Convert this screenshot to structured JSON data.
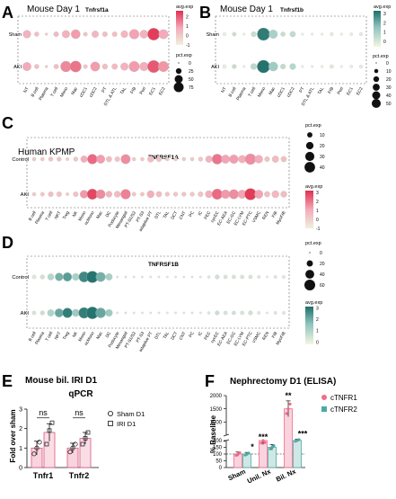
{
  "figure": {
    "panels": [
      {
        "letter": "A",
        "label": "Mouse Day 1",
        "gene": "Tnfrsf1a"
      },
      {
        "letter": "B",
        "label": "Mouse Day 1",
        "gene": "Tnfrsf1b"
      },
      {
        "letter": "C",
        "label": "Human KPMP",
        "gene": "TNFRSF1A"
      },
      {
        "letter": "D",
        "label": "",
        "gene": "TNFRSF1B"
      },
      {
        "letter": "E",
        "label": "Mouse bil. IRI D1",
        "subtitle": "qPCR"
      },
      {
        "letter": "F",
        "label": "Nephrectomy D1 (ELISA)"
      }
    ],
    "legend_labels": {
      "avg_exp": "avg.exp",
      "pct_exp": "pct.exp"
    },
    "colors": {
      "tnfrsf1a_high": "#e0304f",
      "tnfrsf1a_low": "#f6f4e6",
      "tnfrsf1b_high": "#2a7b76",
      "tnfrsf1b_low": "#f4f6e2",
      "tnfr1_bar": "#ef6c8e",
      "tnfr2_bar": "#4eaaa4"
    }
  },
  "chart_data": [
    {
      "type": "scatter",
      "title": "Tnfrsf1a",
      "rows": [
        "Sham",
        "AKI"
      ],
      "cols": [
        "NT",
        "B cell",
        "Plasma",
        "T cell",
        "Mono",
        "Mac",
        "cDC1",
        "cDC2",
        "PT",
        "DTL & ATL",
        "TAL",
        "FIB",
        "Peri",
        "EC1",
        "EC2"
      ],
      "avg_exp": [
        [
          0.6,
          0.3,
          0.1,
          0.4,
          0.6,
          1.0,
          0.2,
          0.5,
          0.3,
          0.3,
          0.5,
          0.9,
          0.6,
          2.4,
          0.8
        ],
        [
          0.8,
          0.3,
          0.1,
          0.3,
          1.3,
          1.6,
          0.2,
          1.0,
          0.3,
          0.4,
          0.6,
          1.0,
          0.7,
          2.0,
          1.1
        ]
      ],
      "pct_exp": [
        [
          30,
          10,
          3,
          12,
          28,
          40,
          8,
          22,
          12,
          12,
          24,
          45,
          32,
          70,
          42
        ],
        [
          35,
          10,
          3,
          11,
          55,
          60,
          8,
          42,
          14,
          16,
          28,
          52,
          36,
          72,
          52
        ]
      ],
      "color_legend": {
        "title": "avg.exp",
        "ticks": [
          2,
          1,
          0,
          -1
        ],
        "range": [
          -1,
          2.6
        ]
      },
      "size_legend": {
        "title": "pct.exp",
        "ticks": [
          0,
          25,
          50,
          75
        ]
      }
    },
    {
      "type": "scatter",
      "title": "Tnfrsf1b",
      "rows": [
        "Sham",
        "AKI"
      ],
      "cols": [
        "NT",
        "B cell",
        "Plasma",
        "T cell",
        "Mono",
        "Mac",
        "cDC1",
        "cDC2",
        "PT",
        "DTL & ATL",
        "TAL",
        "FIB",
        "Peri",
        "EC1",
        "EC2"
      ],
      "avg_exp": [
        [
          -0.5,
          0.2,
          -0.5,
          0.3,
          3.0,
          0.8,
          0.3,
          0.4,
          -0.5,
          -0.5,
          -0.5,
          -0.3,
          -0.5,
          -0.4,
          -0.3
        ],
        [
          -0.4,
          0.3,
          -0.5,
          0.5,
          3.2,
          1.0,
          0.4,
          0.6,
          -0.5,
          -0.5,
          -0.5,
          -0.2,
          -0.5,
          -0.4,
          -0.3
        ]
      ],
      "pct_exp": [
        [
          4,
          6,
          2,
          10,
          60,
          28,
          8,
          12,
          2,
          2,
          2,
          4,
          2,
          3,
          4
        ],
        [
          5,
          7,
          2,
          14,
          62,
          32,
          10,
          14,
          2,
          2,
          2,
          5,
          2,
          3,
          4
        ]
      ],
      "color_legend": {
        "title": "avg.exp",
        "ticks": [
          3,
          2,
          1,
          0
        ],
        "range": [
          -0.6,
          3.3
        ]
      },
      "size_legend": {
        "title": "pct.exp",
        "ticks": [
          0,
          10,
          20,
          30,
          40,
          50
        ]
      }
    },
    {
      "type": "scatter",
      "title": "TNFRSF1A",
      "rows": [
        "Control",
        "AKI"
      ],
      "cols": [
        "B cell",
        "Plasma",
        "T cell",
        "NKT",
        "Treg",
        "NK",
        "Mono",
        "ncMono",
        "Mac",
        "DC",
        "Podocyte",
        "Mesangial",
        "PT-S1/S2",
        "PT-S3",
        "adaptive PT",
        "DTL",
        "TAL",
        "DCT",
        "CNT",
        "PC",
        "IC",
        "PEC",
        "cycEC",
        "EC-AEA",
        "EC-GC",
        "EC-LYM",
        "EC-PTC",
        "VSMC",
        "REN",
        "FIB",
        "MyoFIB"
      ],
      "avg_exp": [
        [
          0.2,
          0.3,
          0.4,
          0.4,
          0.1,
          0.3,
          1.0,
          2.2,
          1.3,
          0.6,
          0.4,
          1.6,
          0.2,
          0.2,
          0.6,
          0.4,
          0.2,
          0.2,
          0.2,
          0.2,
          0.3,
          0.8,
          2.0,
          1.2,
          1.3,
          1.0,
          1.6,
          1.0,
          0.4,
          0.6,
          0.5
        ],
        [
          0.2,
          0.3,
          0.5,
          0.4,
          0.1,
          0.4,
          1.4,
          2.8,
          1.6,
          0.8,
          0.6,
          1.8,
          0.3,
          0.3,
          1.0,
          0.6,
          0.3,
          0.3,
          0.3,
          0.3,
          0.4,
          0.9,
          2.2,
          1.4,
          1.6,
          1.2,
          3.0,
          1.2,
          0.5,
          0.7,
          0.6
        ]
      ],
      "pct_exp": [
        [
          4,
          4,
          6,
          6,
          3,
          6,
          14,
          30,
          22,
          10,
          8,
          28,
          4,
          4,
          12,
          8,
          4,
          4,
          4,
          4,
          6,
          14,
          32,
          22,
          24,
          18,
          36,
          20,
          8,
          14,
          10
        ],
        [
          4,
          5,
          8,
          8,
          3,
          8,
          20,
          34,
          26,
          12,
          12,
          30,
          5,
          5,
          16,
          10,
          6,
          6,
          6,
          6,
          8,
          16,
          34,
          24,
          28,
          22,
          42,
          22,
          10,
          16,
          12
        ]
      ],
      "color_legend": {
        "title": "avg.exp",
        "ticks": [
          3,
          2,
          1,
          0,
          -1
        ],
        "range": [
          -1,
          3.2
        ]
      },
      "size_legend": {
        "title": "pct.exp",
        "ticks": [
          10,
          20,
          30,
          40
        ]
      }
    },
    {
      "type": "scatter",
      "title": "TNFRSF1B",
      "rows": [
        "Control",
        "AKI"
      ],
      "cols": [
        "B cell",
        "Plasma",
        "T cell",
        "NKT",
        "Treg",
        "NK",
        "Mono",
        "ncMono",
        "Mac",
        "DC",
        "Podocyte",
        "Mesangial",
        "PT-S1/S2",
        "PT-S3",
        "adaptive PT",
        "DTL",
        "TAL",
        "DCT",
        "CNT",
        "PC",
        "IC",
        "PEC",
        "cycEC",
        "EC-AEA",
        "EC-GC",
        "EC-LYM",
        "EC-PTC",
        "VSMC",
        "REN",
        "FIB",
        "MyoFIB"
      ],
      "avg_exp": [
        [
          0.2,
          0.4,
          0.8,
          1.8,
          2.2,
          1.0,
          2.6,
          3.0,
          1.8,
          1.0,
          0.2,
          0.2,
          0.1,
          0.1,
          0.1,
          0.1,
          0.1,
          0.1,
          0.1,
          0.1,
          0.1,
          0.2,
          0.4,
          0.3,
          0.3,
          0.3,
          0.3,
          0.2,
          0.1,
          0.2,
          0.2
        ],
        [
          0.3,
          0.5,
          0.9,
          2.0,
          2.8,
          1.2,
          2.8,
          3.0,
          2.0,
          1.2,
          0.2,
          0.2,
          0.1,
          0.1,
          0.1,
          0.1,
          0.1,
          0.1,
          0.1,
          0.1,
          0.1,
          0.2,
          0.5,
          0.3,
          0.4,
          0.3,
          0.4,
          0.2,
          0.1,
          0.2,
          0.2
        ]
      ],
      "pct_exp": [
        [
          6,
          8,
          18,
          28,
          34,
          22,
          48,
          60,
          40,
          20,
          2,
          2,
          2,
          2,
          2,
          2,
          2,
          2,
          2,
          2,
          2,
          3,
          8,
          6,
          6,
          6,
          6,
          4,
          2,
          4,
          4
        ],
        [
          6,
          8,
          20,
          32,
          42,
          24,
          52,
          64,
          44,
          22,
          2,
          2,
          2,
          2,
          2,
          2,
          2,
          2,
          2,
          2,
          2,
          3,
          8,
          6,
          6,
          6,
          8,
          4,
          2,
          4,
          4
        ]
      ],
      "color_legend": {
        "title": "avg.exp",
        "ticks": [
          3,
          2,
          1,
          0
        ],
        "range": [
          -0.2,
          3.1
        ]
      },
      "size_legend": {
        "title": "pct.exp",
        "ticks": [
          0,
          20,
          40,
          60
        ]
      }
    },
    {
      "type": "bar",
      "title": "Mouse bil. IRI D1",
      "ylabel": "Fold over sham",
      "categories": [
        "Tnfr1",
        "Tnfr2"
      ],
      "ylim": [
        0,
        3
      ],
      "yticks": [
        0,
        1,
        2,
        3
      ],
      "series": [
        {
          "name": "Sham D1",
          "values": [
            1.0,
            1.0
          ],
          "err": [
            0.35,
            0.25
          ],
          "points": [
            [
              0.7,
              1.0,
              1.3
            ],
            [
              0.8,
              1.0,
              1.2
            ]
          ]
        },
        {
          "name": "IRI D1",
          "values": [
            1.8,
            1.5
          ],
          "err": [
            0.45,
            0.3
          ],
          "points": [
            [
              1.2,
              1.9,
              2.3
            ],
            [
              1.2,
              1.5,
              1.8
            ]
          ]
        }
      ],
      "annotations": [
        "ns",
        "ns"
      ]
    },
    {
      "type": "bar",
      "title": "Nephrectomy D1 (ELISA)",
      "ylabel": "% Baseline",
      "categories": [
        "Sham",
        "Unil. Nx",
        "Bil. Nx"
      ],
      "yticks": [
        0,
        50,
        100,
        150,
        200,
        500,
        1000,
        1500,
        2000
      ],
      "series": [
        {
          "name": "cTNFR1",
          "values": [
            100,
            200,
            1500
          ],
          "err": [
            15,
            30,
            300
          ]
        },
        {
          "name": "cTNFR2",
          "values": [
            100,
            150,
            300
          ],
          "err": [
            12,
            20,
            50
          ]
        }
      ],
      "annotations": [
        "",
        "*",
        "***",
        "",
        "**",
        "***"
      ]
    }
  ]
}
